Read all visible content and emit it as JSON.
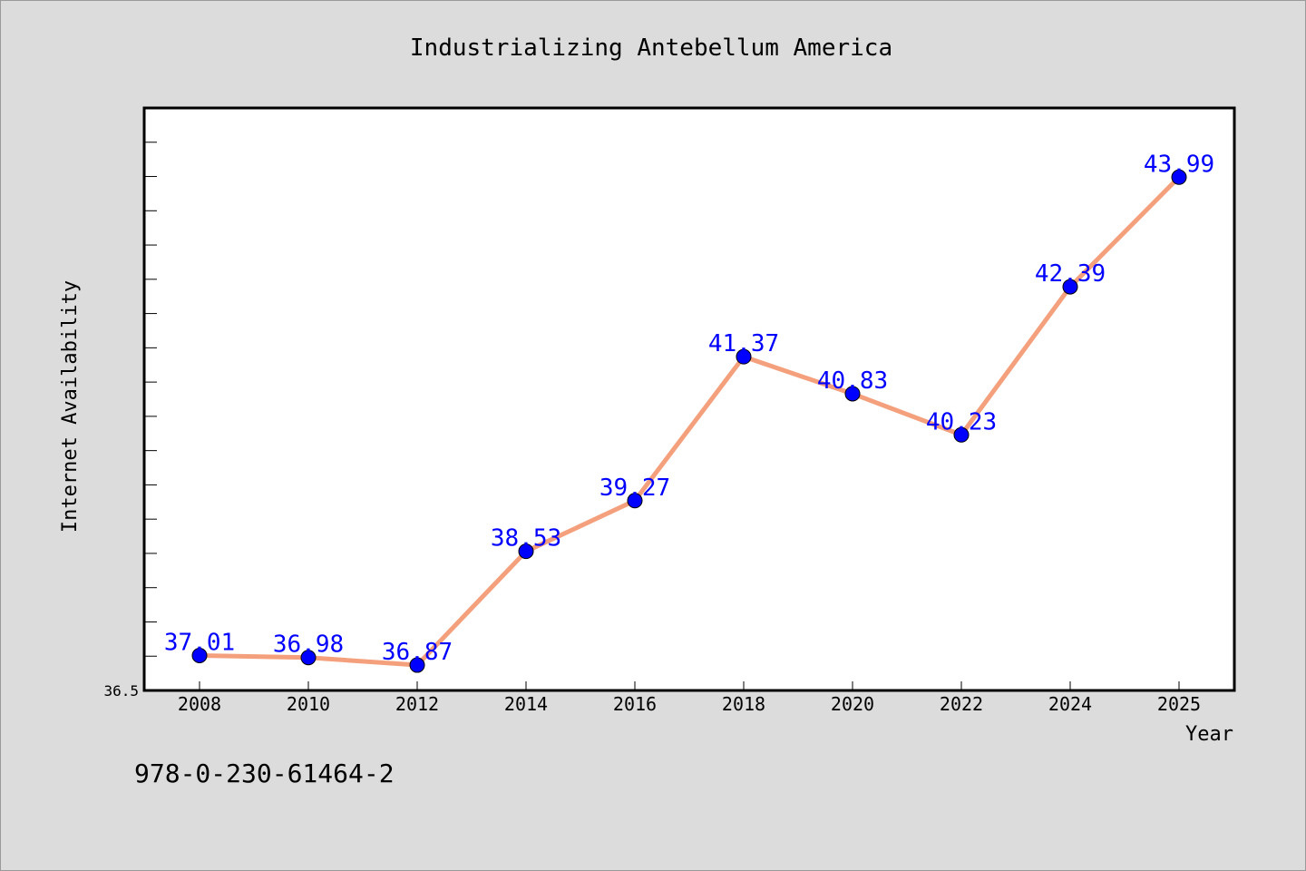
{
  "chart_data": {
    "type": "line",
    "title": "Industrializing Antebellum America",
    "xlabel": "Year",
    "ylabel": "Internet Availability",
    "x": [
      "2008",
      "2010",
      "2012",
      "2014",
      "2016",
      "2018",
      "2020",
      "2022",
      "2024",
      "2025"
    ],
    "series": [
      {
        "values": [
          37.01,
          36.98,
          36.87,
          38.53,
          39.27,
          41.37,
          40.83,
          40.23,
          42.39,
          43.99
        ],
        "data_labels": [
          "37.01",
          "36.98",
          "36.87",
          "38.53",
          "39.27",
          "41.37",
          "40.83",
          "40.23",
          "42.39",
          "43.99"
        ]
      }
    ],
    "y_tick_labels": [
      "36.5"
    ],
    "ylim": [
      36.5,
      45.0
    ],
    "grid": false,
    "line_color": "#f4a07c",
    "marker_color": "#0000ff",
    "label_color": "#0000ff",
    "background_color": "#dcdcdc",
    "plot_background": "#ffffff"
  },
  "footer": {
    "code": "978-0-230-61464-2"
  }
}
